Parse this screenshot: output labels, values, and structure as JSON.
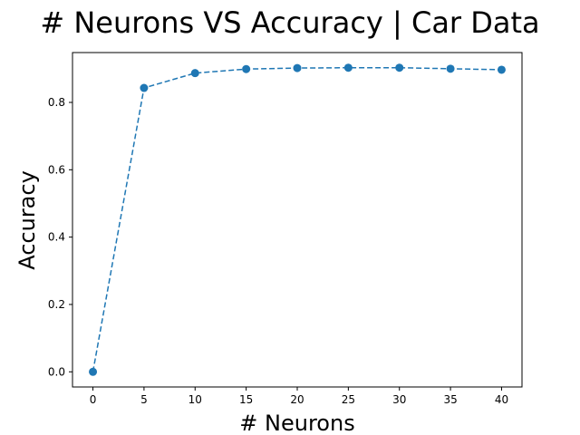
{
  "chart_data": {
    "type": "line",
    "title": "# Neurons VS Accuracy | Car Data",
    "xlabel": "# Neurons",
    "ylabel": "Accuracy",
    "xlim": [
      -2,
      42
    ],
    "ylim": [
      -0.045,
      0.948
    ],
    "xticks": [
      0,
      5,
      10,
      15,
      20,
      25,
      30,
      35,
      40
    ],
    "xtick_labels": [
      "0",
      "5",
      "10",
      "15",
      "20",
      "25",
      "30",
      "35",
      "40"
    ],
    "yticks": [
      0.0,
      0.2,
      0.4,
      0.6,
      0.8
    ],
    "ytick_labels": [
      "0.0",
      "0.2",
      "0.4",
      "0.6",
      "0.8"
    ],
    "grid": false,
    "series": [
      {
        "color": "#1f77b4",
        "line_style": "dashed",
        "marker": "circle",
        "x": [
          0,
          5,
          10,
          15,
          20,
          25,
          30,
          35,
          40
        ],
        "y": [
          0.0,
          0.843,
          0.887,
          0.899,
          0.902,
          0.903,
          0.903,
          0.9,
          0.897
        ]
      }
    ]
  }
}
